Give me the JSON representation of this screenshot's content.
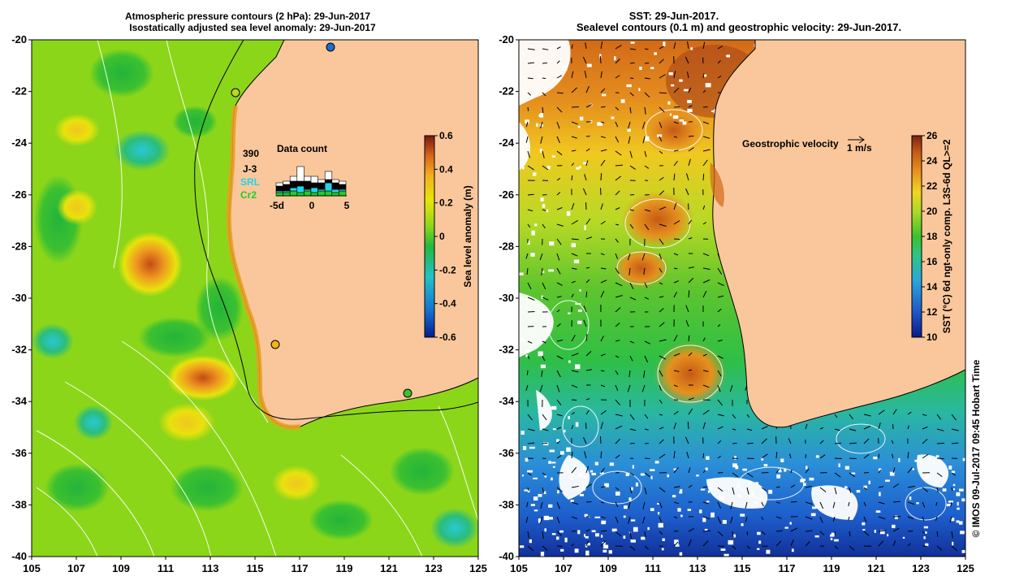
{
  "left_panel": {
    "title_line1": "Atmospheric pressure contours (2 hPa): 29-Jun-2017",
    "title_line2": "Isostatically adjusted sea level anomaly: 29-Jun-2017",
    "x_ticks": [
      "105",
      "107",
      "109",
      "111",
      "113",
      "115",
      "117",
      "119",
      "121",
      "123",
      "125"
    ],
    "y_ticks": [
      "-20",
      "-22",
      "-24",
      "-26",
      "-28",
      "-30",
      "-32",
      "-34",
      "-36",
      "-38",
      "-40"
    ],
    "colorbar": {
      "label": "Sea level anomaly (m)",
      "ticks": [
        "0.6",
        "0.4",
        "0.2",
        "0",
        "-0.2",
        "-0.4",
        "-0.6"
      ]
    },
    "data_count": {
      "title": "Data count",
      "total": "390",
      "legend": [
        {
          "label": "J-3",
          "color": "#000000"
        },
        {
          "label": "SRL",
          "color": "#22d3ee"
        },
        {
          "label": "Cr2",
          "color": "#22cc22"
        }
      ],
      "x_ticks": [
        "-5d",
        "0",
        "5"
      ],
      "bars": [
        {
          "day": -5,
          "cr2": 2,
          "srl": 1,
          "j3": 3,
          "white": 2
        },
        {
          "day": -4,
          "cr2": 2,
          "srl": 1,
          "j3": 4,
          "white": 2
        },
        {
          "day": -3,
          "cr2": 3,
          "srl": 2,
          "j3": 4,
          "white": 3
        },
        {
          "day": -2,
          "cr2": 2,
          "srl": 4,
          "j3": 3,
          "white": 9
        },
        {
          "day": -1,
          "cr2": 3,
          "srl": 1,
          "j3": 5,
          "white": 3
        },
        {
          "day": 0,
          "cr2": 2,
          "srl": 3,
          "j3": 3,
          "white": 4
        },
        {
          "day": 1,
          "cr2": 3,
          "srl": 1,
          "j3": 4,
          "white": 2
        },
        {
          "day": 2,
          "cr2": 3,
          "srl": 5,
          "j3": 2,
          "white": 5
        },
        {
          "day": 3,
          "cr2": 2,
          "srl": 2,
          "j3": 4,
          "white": 2
        },
        {
          "day": 4,
          "cr2": 3,
          "srl": 1,
          "j3": 3,
          "white": 2
        }
      ]
    }
  },
  "right_panel": {
    "title_line1": "SST: 29-Jun-2017.",
    "title_line2": "Sealevel contours (0.1 m) and geostrophic velocity: 29-Jun-2017.",
    "x_ticks": [
      "105",
      "107",
      "109",
      "111",
      "113",
      "115",
      "117",
      "119",
      "121",
      "123",
      "125"
    ],
    "y_ticks": [
      "-20",
      "-22",
      "-24",
      "-26",
      "-28",
      "-30",
      "-32",
      "-34",
      "-36",
      "-38",
      "-40"
    ],
    "velocity_legend": "Geostrophic velocity",
    "velocity_scale": "1 m/s",
    "colorbar": {
      "label": "SST (°C) 6d ngt-only comp. L3S-6d QL>=2",
      "ticks": [
        "26",
        "24",
        "22",
        "20",
        "18",
        "16",
        "14",
        "12",
        "10"
      ]
    }
  },
  "credit": "© IMOS 09-Jul-2017 09:45 Hobart Time",
  "colors": {
    "land": "#f9c79b",
    "sla_palette": [
      "#081b8f",
      "#1470d0",
      "#22c2c8",
      "#22b83a",
      "#8cd61a",
      "#e9e40a",
      "#f3b11c",
      "#d9661c",
      "#7a1712"
    ],
    "sst_palette": [
      "#0a1a8a",
      "#1c55c8",
      "#29a6dc",
      "#2ec48a",
      "#3bc12e",
      "#a9d925",
      "#f0d520",
      "#e9921e",
      "#c35a18",
      "#7a2310"
    ]
  }
}
